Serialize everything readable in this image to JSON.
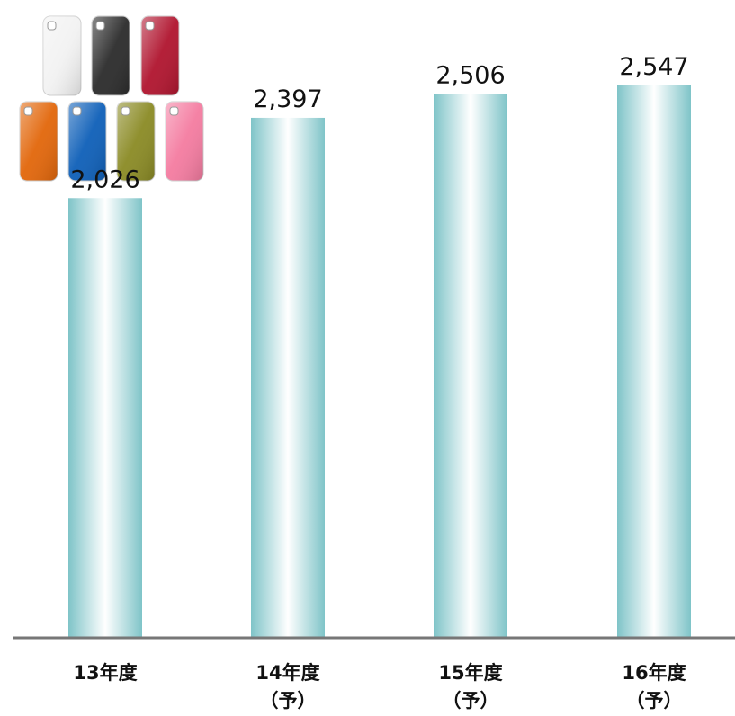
{
  "chart_data": {
    "type": "bar",
    "categories": [
      {
        "line1": "13年度",
        "line2": ""
      },
      {
        "line1": "14年度",
        "line2": "（予）"
      },
      {
        "line1": "15年度",
        "line2": "（予）"
      },
      {
        "line1": "16年度",
        "line2": "（予）"
      }
    ],
    "values": [
      2026,
      2397,
      2506,
      2547
    ],
    "value_labels": [
      "2,026",
      "2,397",
      "2,506",
      "2,547"
    ],
    "title": "",
    "xlabel": "",
    "ylabel": "",
    "ylim": [
      0,
      2700
    ],
    "grid": false,
    "legend": "none",
    "bar_color": "#7fc4c8",
    "axis_color": "#777777"
  },
  "decoration": {
    "phone_case_colors": [
      "#f2f2f2",
      "#2b2b2b",
      "#b0142e",
      "#e2660a",
      "#0e5fb8",
      "#8a8a24",
      "#f47ba0"
    ]
  }
}
